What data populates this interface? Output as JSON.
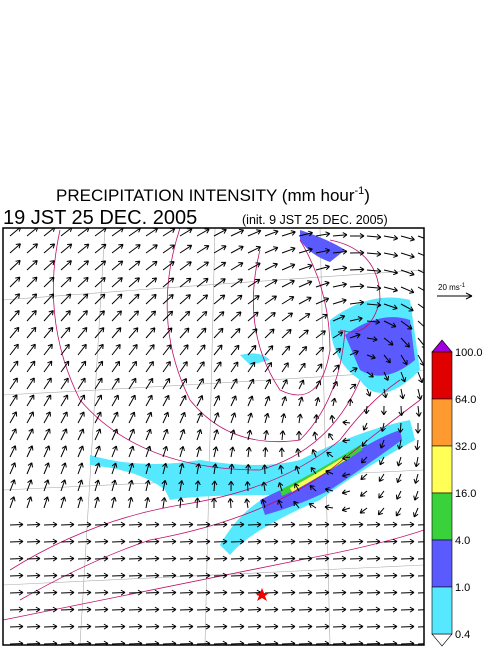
{
  "title": {
    "text": "PRECIPITATION INTENSITY (mm hour",
    "exponent": "-1",
    "close": ")"
  },
  "valid_time": "19 JST 25 DEC. 2005",
  "init_time": "(init. 9 JST 25 DEC. 2005)",
  "reference_vector": {
    "text": "20 ms",
    "exponent": "-1"
  },
  "colorbar": {
    "labels": [
      "100.0",
      "64.0",
      "32.0",
      "16.0",
      "4.0",
      "1.0",
      "0.4"
    ]
  }
}
